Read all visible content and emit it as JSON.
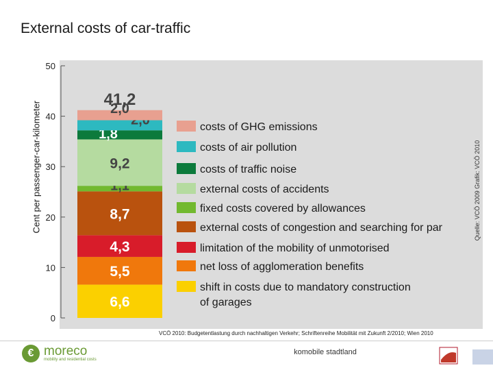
{
  "title": "External costs of car-traffic",
  "source_vertical": "Quelle: VCÖ 2009 Grafik: VCÖ 2010",
  "footer": {
    "source": "VCÖ 2010: Budgetentlastung durch nachhaltigen Verkehr; Schriftenreihe Mobilität mit Zukunft 2/2010; Wien 2010",
    "center_text": "komobile stadtland",
    "logo_name": "moreco",
    "logo_sub": "mobility and residential costs",
    "logo_glyph": "€"
  },
  "colors": {
    "panel_bg": "#dcdcdc",
    "axis": "#555555"
  },
  "chart_data": {
    "type": "bar",
    "stacked": true,
    "title": "External costs of car-traffic",
    "ylabel": "Cent per passenger-car-kilometer",
    "ylim": [
      0,
      50
    ],
    "yticks": [
      0,
      10,
      20,
      30,
      40,
      50
    ],
    "total_label": "41,2",
    "series": [
      {
        "name": "shift in costs due to mandatory construction of garages",
        "value": 6.6,
        "label": "6,6",
        "color": "#fbd000"
      },
      {
        "name": "net loss of agglomeration benefits",
        "value": 5.5,
        "label": "5,5",
        "color": "#f0780c"
      },
      {
        "name": "limitation of the mobility of unmotorised",
        "value": 4.3,
        "label": "4,3",
        "color": "#d81c2a"
      },
      {
        "name": "external costs of congestion and searching for par",
        "value": 8.7,
        "label": "8,7",
        "color": "#b9520e"
      },
      {
        "name": "fixed costs covered by allowances",
        "value": 1.1,
        "label": "1,1",
        "color": "#72b92f"
      },
      {
        "name": "external costs of accidents",
        "value": 9.2,
        "label": "9,2",
        "color": "#b5dba0"
      },
      {
        "name": "costs of traffic noise",
        "value": 1.8,
        "label": "1,8",
        "color": "#0c7a3c"
      },
      {
        "name": "costs of air pollution",
        "value": 2.0,
        "label": "2,0",
        "color": "#2db9c0"
      },
      {
        "name": "costs of GHG emissions",
        "value": 2.0,
        "label": "2,0",
        "color": "#e8a090"
      }
    ],
    "legend": [
      {
        "label": "costs of GHG emissions",
        "color": "#e8a090"
      },
      {
        "label": "costs of air pollution",
        "color": "#2db9c0"
      },
      {
        "label": "costs of traffic noise",
        "color": "#0c7a3c"
      },
      {
        "label": "external costs of accidents",
        "color": "#b5dba0"
      },
      {
        "label": "fixed costs covered by allowances",
        "color": "#72b92f"
      },
      {
        "label": "external costs of congestion and searching for par",
        "color": "#b9520e"
      },
      {
        "label": "limitation of the mobility of unmotorised",
        "color": "#d81c2a"
      },
      {
        "label": "net loss of agglomeration benefits",
        "color": "#f0780c"
      },
      {
        "label": "shift in costs due to mandatory construction of garages",
        "color": "#fbd000"
      }
    ]
  }
}
